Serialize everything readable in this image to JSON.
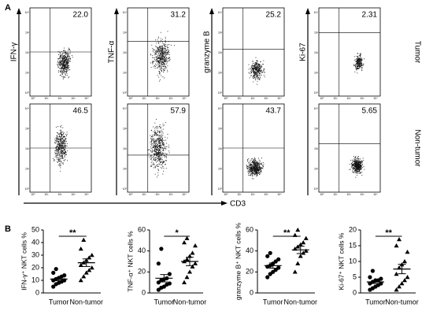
{
  "panel_a": {
    "label": "A",
    "x_label": "CD3",
    "row_labels": [
      "Tumor",
      "Non-tumor"
    ],
    "markers": [
      "IFN-γ",
      "TNF-α",
      "granzyme B",
      "Ki-67"
    ],
    "percentages": [
      [
        "22.0",
        "31.2",
        "25.2",
        "2.31"
      ],
      [
        "46.5",
        "57.9",
        "43.7",
        "5.65"
      ]
    ],
    "axis_ticks": [
      "10⁰",
      "10¹",
      "10²",
      "10³",
      "10⁴"
    ]
  },
  "panel_b_label": "B",
  "chart_data": [
    {
      "type": "strip",
      "ylabel": "IFN-γ⁺ NKT cells %",
      "categories": [
        "Tumor",
        "Non-tumor"
      ],
      "ylim": [
        0,
        50
      ],
      "yticks": [
        0,
        10,
        20,
        30,
        40,
        50
      ],
      "significance": "**",
      "series": [
        {
          "name": "Tumor",
          "marker": "circle",
          "color": "#000000",
          "values": [
            5,
            7,
            8,
            9,
            10,
            10,
            11,
            12,
            13,
            14,
            16,
            19
          ],
          "mean": 11,
          "sem": 1.2
        },
        {
          "name": "Non-tumor",
          "marker": "triangle",
          "color": "#000000",
          "values": [
            10,
            13,
            16,
            18,
            20,
            22,
            24,
            26,
            28,
            30,
            35,
            42
          ],
          "mean": 24,
          "sem": 3
        }
      ]
    },
    {
      "type": "strip",
      "ylabel": "TNF-α⁺ NKT cells %",
      "categories": [
        "Tumor",
        "Non-tumor"
      ],
      "ylim": [
        0,
        60
      ],
      "yticks": [
        0,
        20,
        40,
        60
      ],
      "significance": "*",
      "series": [
        {
          "name": "Tumor",
          "marker": "circle",
          "color": "#000000",
          "values": [
            3,
            5,
            6,
            8,
            9,
            10,
            12,
            13,
            14,
            18,
            28,
            42
          ],
          "mean": 14,
          "sem": 3.5
        },
        {
          "name": "Non-tumor",
          "marker": "triangle",
          "color": "#000000",
          "values": [
            10,
            15,
            20,
            25,
            28,
            30,
            32,
            35,
            38,
            45,
            48,
            52
          ],
          "mean": 30,
          "sem": 4
        }
      ]
    },
    {
      "type": "strip",
      "ylabel": "granzyme B⁺ NKT cells %",
      "categories": [
        "Tumor",
        "Non-tumor"
      ],
      "ylim": [
        0,
        60
      ],
      "yticks": [
        0,
        20,
        40,
        60
      ],
      "significance": "**",
      "series": [
        {
          "name": "Tumor",
          "marker": "circle",
          "color": "#000000",
          "values": [
            15,
            18,
            20,
            22,
            24,
            25,
            26,
            28,
            30,
            32,
            35,
            38
          ],
          "mean": 26,
          "sem": 2.5
        },
        {
          "name": "Non-tumor",
          "marker": "triangle",
          "color": "#000000",
          "values": [
            20,
            28,
            35,
            38,
            40,
            42,
            44,
            46,
            48,
            52,
            55,
            60
          ],
          "mean": 41,
          "sem": 3.5
        }
      ]
    },
    {
      "type": "strip",
      "ylabel": "Ki-67⁺ NKT cells %",
      "categories": [
        "Tumor",
        "Non-tumor"
      ],
      "ylim": [
        0,
        20
      ],
      "yticks": [
        0,
        5,
        10,
        15,
        20
      ],
      "significance": "**",
      "series": [
        {
          "name": "Tumor",
          "marker": "circle",
          "color": "#000000",
          "values": [
            1,
            1.5,
            2,
            2.5,
            3,
            3,
            3.5,
            4,
            4,
            4.5,
            5,
            7
          ],
          "mean": 3.5,
          "sem": 0.5
        },
        {
          "name": "Non-tumor",
          "marker": "triangle",
          "color": "#000000",
          "values": [
            1,
            2,
            3,
            4,
            5,
            6,
            8,
            9,
            10,
            13,
            15,
            17
          ],
          "mean": 7.6,
          "sem": 1.5
        }
      ]
    }
  ]
}
